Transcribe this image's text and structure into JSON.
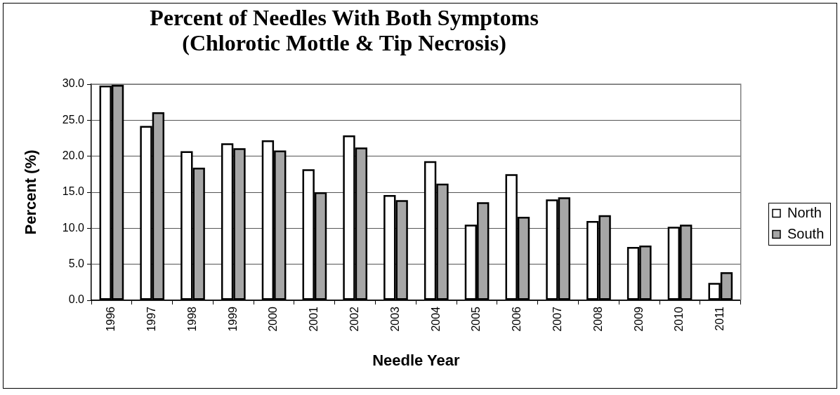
{
  "chart_data": {
    "type": "bar",
    "title": "Percent of Needles With Both Symptoms\n(Chlorotic Mottle & Tip Necrosis)",
    "xlabel": "Needle Year",
    "ylabel": "Percent (%)",
    "categories": [
      "1996",
      "1997",
      "1998",
      "1999",
      "2000",
      "2001",
      "2002",
      "2003",
      "2004",
      "2005",
      "2006",
      "2007",
      "2008",
      "2009",
      "2010",
      "2011"
    ],
    "series": [
      {
        "name": "North",
        "color": "#ffffff",
        "values": [
          29.8,
          24.2,
          20.7,
          21.8,
          22.2,
          18.2,
          22.9,
          14.6,
          19.3,
          10.5,
          17.5,
          14.0,
          11.0,
          7.4,
          10.2,
          2.4
        ]
      },
      {
        "name": "South",
        "color": "#a6a6a6",
        "values": [
          29.9,
          26.1,
          18.4,
          21.1,
          20.8,
          15.0,
          21.2,
          13.9,
          16.2,
          13.6,
          11.6,
          14.3,
          11.8,
          7.6,
          10.5,
          3.9
        ]
      }
    ],
    "ylim": [
      0,
      30
    ],
    "yticks": [
      {
        "value": 0,
        "label": "0.0"
      },
      {
        "value": 5,
        "label": "5.0"
      },
      {
        "value": 10,
        "label": "10.0"
      },
      {
        "value": 15,
        "label": "15.0"
      },
      {
        "value": 20,
        "label": "20.0"
      },
      {
        "value": 25,
        "label": "25.0"
      },
      {
        "value": 30,
        "label": "30.0"
      }
    ],
    "grid": "y",
    "legend": "right"
  }
}
